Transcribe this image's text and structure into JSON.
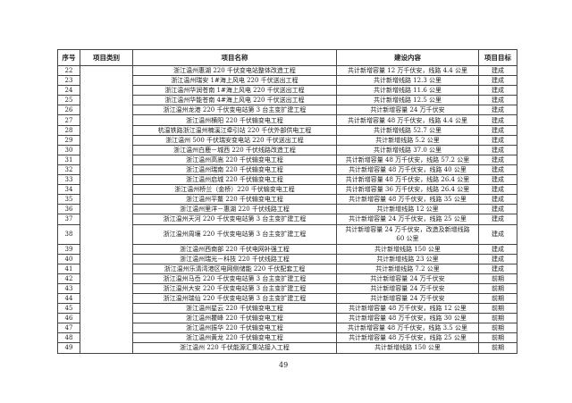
{
  "table": {
    "headers": [
      "序号",
      "项目类别",
      "项目名称",
      "建设内容",
      "项目目标"
    ],
    "category": "",
    "rows": [
      {
        "no": "22",
        "name": "浙江温州惠湖 220 千伏变电站整体改造工程",
        "content": "共计新增容量 12 万千伏安，线路 4.4 公里",
        "goal": "建成"
      },
      {
        "no": "23",
        "name": "浙江温州瑞安 1#海上风电 220 千伏送出工程",
        "content": "共计新增线路 12.3 公里",
        "goal": "建成"
      },
      {
        "no": "24",
        "name": "浙江温州华润苍南 1#海上风电 220 千伏送出工程",
        "content": "共计新增线路 11.6 公里",
        "goal": "建成"
      },
      {
        "no": "25",
        "name": "浙江温州华能苍南 4#海上风电 220 千伏送出工程",
        "content": "共计新增线路 12.5 公里",
        "goal": "建成"
      },
      {
        "no": "26",
        "name": "浙江温州龙港 220 千伏变电站第 3 台主变扩建工程",
        "content": "共计新增容量 24 万千伏安",
        "goal": "建成"
      },
      {
        "no": "27",
        "name": "浙江温州横阳 220 千伏输变电工程",
        "content": "共计新增容量 48 万千伏安，线路 4.4 公里",
        "goal": "建成"
      },
      {
        "no": "28",
        "name": "杭温铁路浙江温州楠溪江牵引站 220 千伏外部供电工程",
        "content": "共计新增线路 52.7 公里",
        "goal": "建成"
      },
      {
        "no": "29",
        "name": "浙江温州 500 千伏瑞安变电站 220 千伏送出工程",
        "content": "共计新增线路 5.2 公里",
        "goal": "建成"
      },
      {
        "no": "30",
        "name": "浙江温州白鹿－城西 220 千伏线路改造工程",
        "content": "共计新增线路 37.0 公里",
        "goal": "建成"
      },
      {
        "no": "31",
        "name": "浙江温州高嵩 220 千伏输变电工程",
        "content": "共计新增容量 48 万千伏安，线路 57.2 公里",
        "goal": "建成"
      },
      {
        "no": "32",
        "name": "浙江温州瑞南 220 千伏输变电工程",
        "content": "共计新增容量 48 万千伏安，线路 40 公里",
        "goal": "建成"
      },
      {
        "no": "33",
        "name": "浙江温州启城 220 千伏输变电工程",
        "content": "共计新增容量 48 万千伏安，线路 26.4 公里",
        "goal": "建成"
      },
      {
        "no": "34",
        "name": "浙江温州桥兰（金桥）220 千伏输变电工程",
        "content": "共计新增容量 36 万千伏安，线路 26.4 公里",
        "goal": "建成"
      },
      {
        "no": "35",
        "name": "浙江温州平鳌 220 千伏输变电工程",
        "content": "共计新增容量 48 万千伏安，线路 35 公里",
        "goal": "建成"
      },
      {
        "no": "36",
        "name": "浙江温州里洋－惠湖 220 千伏线路工程",
        "content": "共计新增线路 12 公里",
        "goal": "建成"
      },
      {
        "no": "37",
        "name": "浙江温州天河 220 千伏变电站第 3 台主变扩建工程",
        "content": "共计新增容量 24 万千伏安，线路 25 公里",
        "goal": "建成"
      },
      {
        "no": "38",
        "name": "浙江温州周壤 220 千伏变电站第 3 台主变扩建工程",
        "content": "共计新增容量 24 万千伏安，改造及新增线路 60 公里",
        "goal": "建成",
        "tall": true
      },
      {
        "no": "39",
        "name": "浙江温州西南部 220 千伏电网补强工程",
        "content": "共计新增线路 150 公里",
        "goal": "建成"
      },
      {
        "no": "40",
        "name": "浙江温州瑞光－科技 220 千伏线路工程",
        "content": "共计新增线路 23 公里",
        "goal": "建成"
      },
      {
        "no": "41",
        "name": "浙江温州乐清湾港区电网侧储能 220 千伏配套工程",
        "content": "共计新增线路 7.2 公里",
        "goal": "建成"
      },
      {
        "no": "42",
        "name": "浙江温州马岙 220 千伏变电站第 3 台主变扩建工程",
        "content": "共计新增容量 24 万千伏安",
        "goal": "前期"
      },
      {
        "no": "43",
        "name": "浙江温州大安 220 千伏变电站第 3 台主变扩建工程",
        "content": "共计新增容量 24 万千伏安",
        "goal": "前期"
      },
      {
        "no": "44",
        "name": "浙江温州瑞仙 220 千伏变电站第 3 台主变扩建工程",
        "content": "共计新增容量 24 万千伏安",
        "goal": "前期"
      },
      {
        "no": "45",
        "name": "浙江温州星云 220 千伏输变电工程",
        "content": "共计新增容量 48 万千伏安，线路 12 公里",
        "goal": "前期"
      },
      {
        "no": "46",
        "name": "浙江温州瞿峰 220 千伏输变电工程",
        "content": "共计新增容量 48 万千伏安，线路 30 公里",
        "goal": "前期"
      },
      {
        "no": "47",
        "name": "浙江温州振华 220 千伏输变电工程",
        "content": "共计新增容量 48 万千伏安，线路 3.5 公里",
        "goal": "前期"
      },
      {
        "no": "48",
        "name": "浙江温州黄龙 220 千伏输变电工程",
        "content": "共计新增容量 48 万千伏安，线路 25 公里",
        "goal": "前期"
      },
      {
        "no": "49",
        "name": "浙江温州 220 千伏能源汇集站接入工程",
        "content": "共计新增线路 150 公里",
        "goal": "前期"
      }
    ]
  },
  "page_number": "49"
}
